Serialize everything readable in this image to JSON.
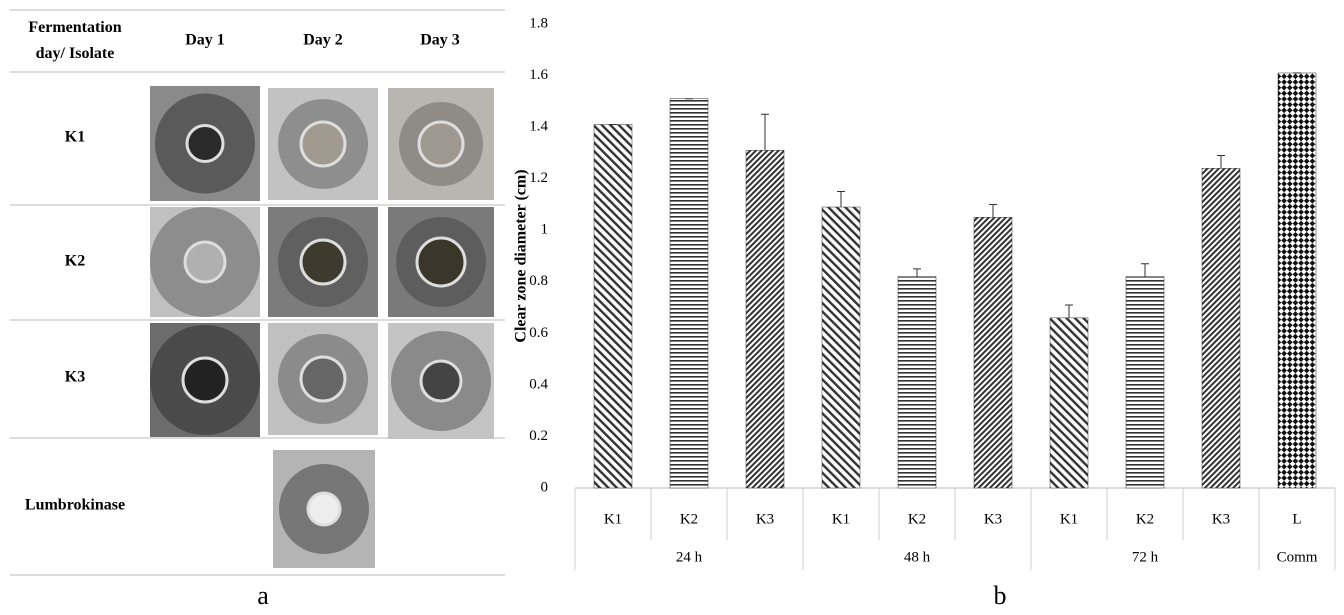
{
  "panel_a": {
    "table": {
      "header": [
        "Fermentation day/ Isolate",
        "Day 1",
        "Day 2",
        "Day 3"
      ],
      "rows": [
        [
          "K1"
        ],
        [
          "K2"
        ],
        [
          "K3"
        ],
        [
          "Lumbrokinase"
        ]
      ]
    },
    "label": "a"
  },
  "chart_data": {
    "type": "bar",
    "label": "b",
    "ylabel": "Clear zone diameter (cm)",
    "ylim": [
      0,
      1.8
    ],
    "yticks": [
      0,
      0.2,
      0.4,
      0.6,
      0.8,
      1,
      1.2,
      1.4,
      1.6,
      1.8
    ],
    "grid": false,
    "color": "#333333",
    "groups": [
      {
        "name": "24 h",
        "categories": [
          "K1",
          "K2",
          "K3"
        ],
        "values": [
          1.41,
          1.51,
          1.31
        ],
        "errors": [
          0,
          0,
          0.14
        ]
      },
      {
        "name": "48 h",
        "categories": [
          "K1",
          "K2",
          "K3"
        ],
        "values": [
          1.09,
          0.82,
          1.05
        ],
        "errors": [
          0.06,
          0.03,
          0.05
        ]
      },
      {
        "name": "72 h",
        "categories": [
          "K1",
          "K2",
          "K3"
        ],
        "values": [
          0.66,
          0.82,
          1.24
        ],
        "errors": [
          0.05,
          0.05,
          0.05
        ]
      },
      {
        "name": "Comm",
        "categories": [
          "L"
        ],
        "values": [
          1.61
        ],
        "errors": [
          0
        ]
      }
    ]
  }
}
